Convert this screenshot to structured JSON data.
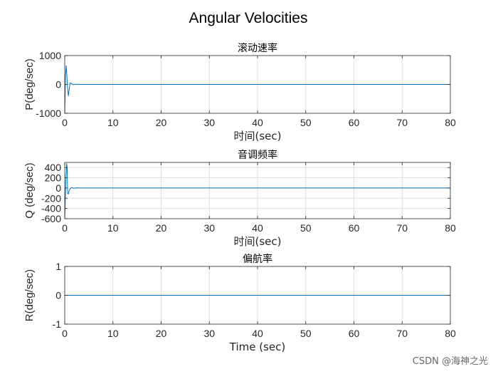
{
  "figure_title": "Angular Velocities",
  "watermark": "CSDN @海神之光",
  "colors": {
    "line": "#0072BD",
    "axis": "#262626",
    "grid": "#dedede",
    "background": "#ffffff"
  },
  "chart_data": [
    {
      "type": "line",
      "title": "滚动速率",
      "xlabel": "时间(sec)",
      "ylabel": "P(deg/sec)",
      "xlim": [
        0,
        80
      ],
      "ylim": [
        -1000,
        1000
      ],
      "xticks": [
        0,
        10,
        20,
        30,
        40,
        50,
        60,
        70,
        80
      ],
      "yticks": [
        -1000,
        0,
        1000
      ],
      "grid": true,
      "series": [
        {
          "x": [
            0,
            0.05,
            0.15,
            0.3,
            0.45,
            0.6,
            0.75,
            0.9,
            1.1,
            1.35,
            1.7,
            2.2,
            3,
            80
          ],
          "y": [
            -950,
            -600,
            300,
            650,
            300,
            -150,
            -400,
            -200,
            50,
            40,
            -10,
            5,
            0,
            0
          ]
        }
      ]
    },
    {
      "type": "line",
      "title": "音调频率",
      "xlabel": "时间(sec)",
      "ylabel": "Q (deg/sec)",
      "xlim": [
        0,
        80
      ],
      "ylim": [
        -600,
        500
      ],
      "xticks": [
        0,
        10,
        20,
        30,
        40,
        50,
        60,
        70,
        80
      ],
      "yticks": [
        -600,
        -400,
        -200,
        0,
        200,
        400
      ],
      "grid": true,
      "series": [
        {
          "x": [
            0,
            0.1,
            0.25,
            0.4,
            0.5,
            0.6,
            0.75,
            0.9,
            1.1,
            1.4,
            1.8,
            2.4,
            3.2,
            80
          ],
          "y": [
            -580,
            -300,
            200,
            480,
            400,
            -100,
            -120,
            -50,
            -20,
            10,
            -5,
            2,
            0,
            0
          ]
        }
      ]
    },
    {
      "type": "line",
      "title": "偏航率",
      "xlabel": "Time (sec)",
      "ylabel": "R(deg/sec)",
      "xlim": [
        0,
        80
      ],
      "ylim": [
        -1,
        1
      ],
      "xticks": [
        0,
        10,
        20,
        30,
        40,
        50,
        60,
        70,
        80
      ],
      "yticks": [
        -1,
        0,
        1
      ],
      "grid": true,
      "series": [
        {
          "x": [
            0,
            80
          ],
          "y": [
            0,
            0
          ]
        }
      ]
    }
  ]
}
